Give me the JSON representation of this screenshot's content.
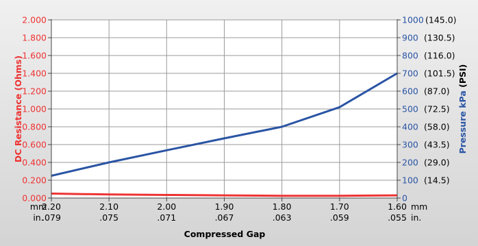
{
  "chart_data": {
    "type": "line",
    "x": [
      2.2,
      2.1,
      2.0,
      1.9,
      1.8,
      1.7,
      1.6
    ],
    "x_tick_labels_mm": [
      "2.20",
      "2.10",
      "2.00",
      "1.90",
      "1.80",
      "1.70",
      "1.60"
    ],
    "x_tick_labels_in": [
      ".079",
      ".075",
      ".071",
      ".067",
      ".063",
      ".059",
      ".055"
    ],
    "x_unit_mm": "mm",
    "x_unit_in": "in.",
    "xlim": [
      2.2,
      1.6
    ],
    "xlabel": "Compressed Gap",
    "y_left": {
      "label": "DC Resistance (Ohms)",
      "ylim": [
        0,
        2.0
      ],
      "ticks": [
        0.0,
        0.2,
        0.4,
        0.6,
        0.8,
        1.0,
        1.2,
        1.4,
        1.6,
        1.8,
        2.0
      ],
      "tick_labels": [
        "0.000",
        "0.200",
        "0.400",
        "0.600",
        "0.800",
        "1.000",
        "1.200",
        "1.400",
        "1.600",
        "1.800",
        "2.000"
      ],
      "color": "#ee3333"
    },
    "y_right": {
      "label_kpa": "Pressure kPa",
      "label_psi": "(PSI)",
      "ylim": [
        0,
        1000
      ],
      "ticks": [
        0,
        100,
        200,
        300,
        400,
        500,
        600,
        700,
        800,
        900,
        1000
      ],
      "tick_labels": [
        "0",
        "100",
        "200",
        "300",
        "400",
        "500",
        "600",
        "700",
        "800",
        "900",
        "1000"
      ],
      "psi_labels": [
        "",
        "(14.5)",
        "(29.0)",
        "(43.5)",
        "(58.0)",
        "(72.5)",
        "(87.0)",
        "(101.5)",
        "(116.0)",
        "(130.5)",
        "(145.0)"
      ],
      "color": "#2a54a4"
    },
    "grid": true,
    "series": [
      {
        "axis": "left",
        "color": "#ee3333",
        "values": [
          0.05,
          0.04,
          0.035,
          0.03,
          0.025,
          0.025,
          0.03
        ]
      },
      {
        "axis": "right",
        "color": "#2a54a4",
        "values": [
          125,
          200,
          268,
          335,
          400,
          510,
          700
        ]
      }
    ]
  }
}
